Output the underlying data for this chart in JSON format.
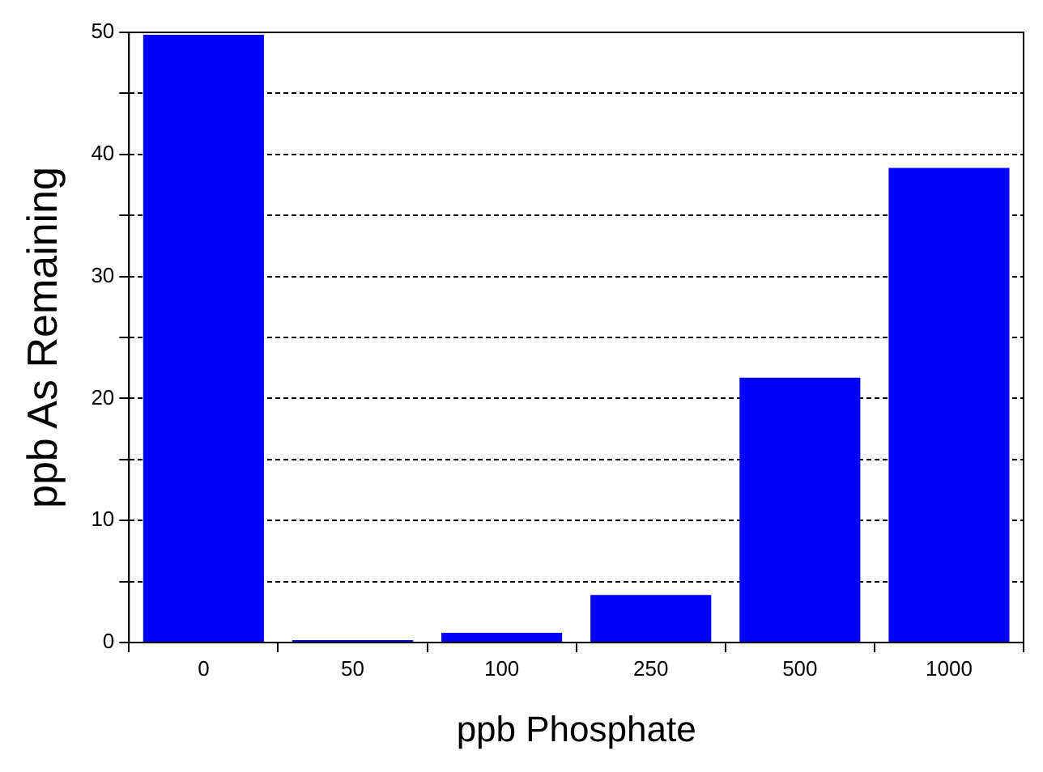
{
  "chart_data": {
    "type": "bar",
    "xlabel": "ppb Phosphate",
    "ylabel": "ppb As Remaining",
    "categories": [
      "0",
      "50",
      "100",
      "250",
      "500",
      "1000"
    ],
    "values": [
      49.8,
      0.2,
      0.8,
      3.9,
      21.7,
      38.9
    ],
    "color": "#0000ff",
    "ylim": [
      0,
      50
    ],
    "yticks": [
      0,
      {
        "value": 5,
        "label": null
      },
      10,
      {
        "value": 15,
        "label": null
      },
      20,
      {
        "value": 25,
        "label": null
      },
      30,
      {
        "value": 35,
        "label": null
      },
      40,
      {
        "value": 45,
        "label": null
      },
      50
    ],
    "grid": "y",
    "legend": false
  }
}
